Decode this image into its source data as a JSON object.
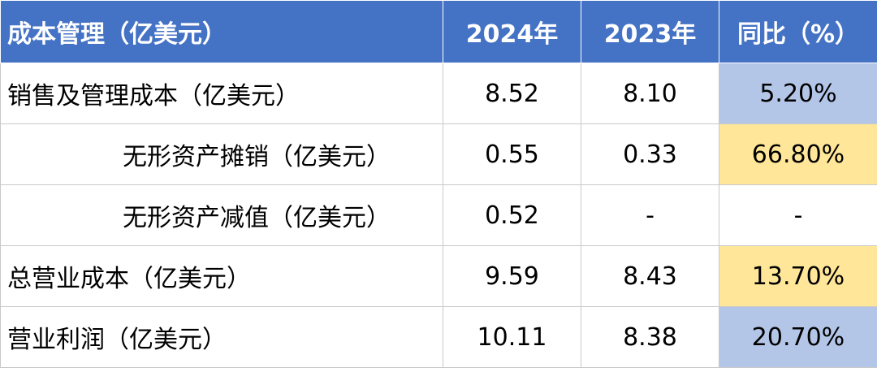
{
  "table": {
    "header": [
      "成本管理（亿美元）",
      "2024年",
      "2023年",
      "同比（%）"
    ],
    "rows": [
      [
        "销售及管理成本（亿美元）",
        "8.52",
        "8.10",
        "5.20%"
      ],
      [
        "无形资产摊销（亿美元）",
        "0.55",
        "0.33",
        "66.80%"
      ],
      [
        "无形资产减值（亿美元）",
        "0.52",
        "-",
        "-"
      ],
      [
        "总营业成本（亿美元）",
        "9.59",
        "8.43",
        "13.70%"
      ],
      [
        "营业利润（亿美元）",
        "10.11",
        "8.38",
        "20.70%"
      ]
    ]
  }
}
